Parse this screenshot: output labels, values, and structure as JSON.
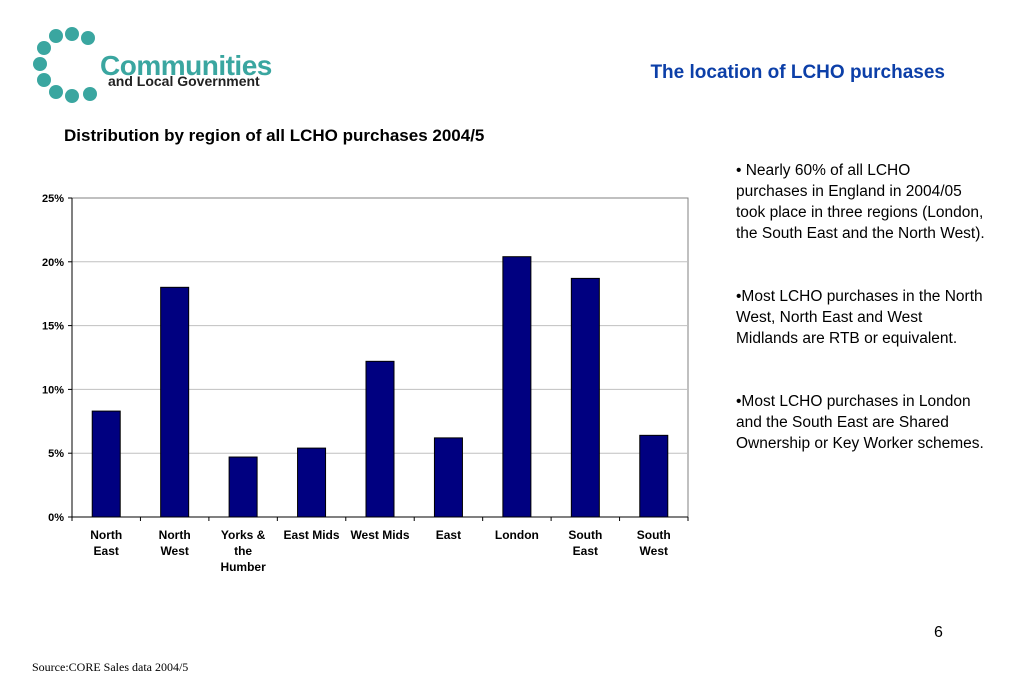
{
  "logo": {
    "text_main": "Communities",
    "text_sub": "and Local Government",
    "dot_color": "#3aa6a0"
  },
  "slide_title": "The location of LCHO purchases",
  "chart_title": "Distribution by region of all LCHO purchases 2004/5",
  "chart_data": {
    "type": "bar",
    "categories": [
      [
        "North",
        "East"
      ],
      [
        "North",
        "West"
      ],
      [
        "Yorks &",
        "the",
        "Humber"
      ],
      [
        "East Mids"
      ],
      [
        "West Mids"
      ],
      [
        "East"
      ],
      [
        "London"
      ],
      [
        "South",
        "East"
      ],
      [
        "South",
        "West"
      ]
    ],
    "values": [
      8.3,
      18.0,
      4.7,
      5.4,
      12.2,
      6.2,
      20.4,
      18.7,
      6.4
    ],
    "ylim": [
      0,
      25
    ],
    "yticks": [
      "0%",
      "5%",
      "10%",
      "15%",
      "20%",
      "25%"
    ],
    "grid": true,
    "bar_color": "#000080"
  },
  "bullets": [
    "• Nearly 60% of all LCHO purchases in England in 2004/05 took place in three regions (London, the South East and the North West).",
    "•Most LCHO purchases in the North West, North East and West Midlands are RTB or equivalent.",
    "•Most LCHO purchases in London and the South East are Shared Ownership or Key Worker schemes."
  ],
  "page_number": "6",
  "source": "Source:CORE Sales data 2004/5"
}
